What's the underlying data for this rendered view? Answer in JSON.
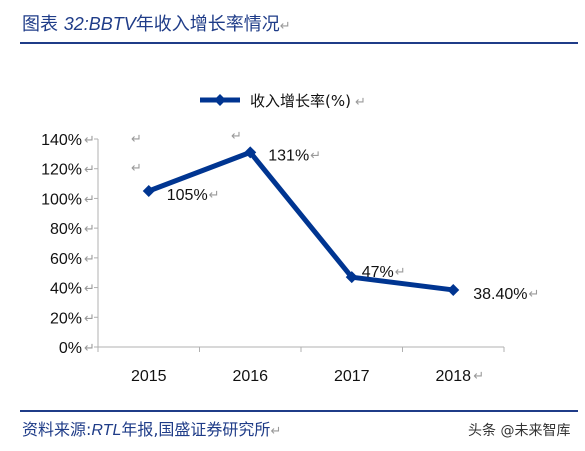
{
  "header": {
    "prefix": "图表 ",
    "number": "32:",
    "brand": "BBTV",
    "text": "年收入增长率情况"
  },
  "footer": {
    "prefix": "资料来源:",
    "brand": "RTL",
    "text": "年报,国盛证券研究所"
  },
  "watermark": "头条 @未来智库",
  "chart_data": {
    "type": "line",
    "title": "",
    "xlabel": "",
    "ylabel": "",
    "categories": [
      "2015",
      "2016",
      "2017",
      "2018"
    ],
    "series": [
      {
        "name": "收入增长率(%)",
        "values": [
          105,
          131,
          47,
          38.4
        ],
        "color": "#003591"
      }
    ],
    "data_labels": [
      "105%",
      "131%",
      "47%",
      "38.40%"
    ],
    "y_ticks": [
      "0%",
      "20%",
      "40%",
      "60%",
      "80%",
      "100%",
      "120%",
      "140%"
    ],
    "ylim": [
      0,
      140
    ],
    "grid": false,
    "legend": "top"
  }
}
